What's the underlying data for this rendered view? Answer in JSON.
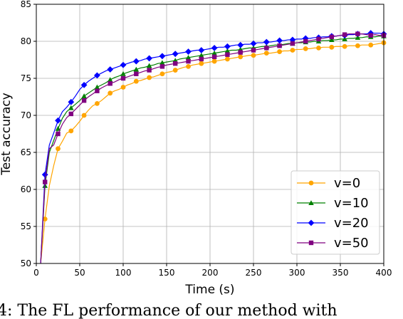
{
  "chart_data": {
    "type": "line",
    "xlabel": "Time (s)",
    "ylabel": "Test accuracy",
    "xlim": [
      0,
      400
    ],
    "ylim": [
      50,
      85
    ],
    "x_ticks": [
      0,
      50,
      100,
      150,
      200,
      250,
      300,
      350,
      400
    ],
    "y_ticks": [
      50,
      55,
      60,
      65,
      70,
      75,
      80,
      85
    ],
    "grid": true,
    "legend_position": "lower-right",
    "series": [
      {
        "name": "v=0",
        "color": "#ffa500",
        "marker": "circle",
        "x": [
          5,
          10,
          15,
          20,
          25,
          30,
          35,
          40,
          45,
          50,
          55,
          60,
          65,
          70,
          75,
          80,
          85,
          90,
          95,
          100,
          105,
          110,
          115,
          120,
          125,
          130,
          135,
          140,
          145,
          150,
          155,
          160,
          165,
          170,
          175,
          180,
          185,
          190,
          195,
          200,
          205,
          210,
          215,
          220,
          225,
          230,
          235,
          240,
          245,
          250,
          255,
          260,
          265,
          270,
          275,
          280,
          285,
          290,
          295,
          300,
          305,
          310,
          315,
          320,
          325,
          330,
          335,
          340,
          345,
          350,
          355,
          360,
          365,
          370,
          375,
          380,
          385,
          390,
          395,
          400
        ],
        "y": [
          50.0,
          56.0,
          60.5,
          63.2,
          65.5,
          66.5,
          67.6,
          67.9,
          68.5,
          69.2,
          70.0,
          70.7,
          71.3,
          71.6,
          72.0,
          72.5,
          73.0,
          73.3,
          73.5,
          73.8,
          74.1,
          74.3,
          74.6,
          74.7,
          74.9,
          75.1,
          75.2,
          75.4,
          75.6,
          75.8,
          75.9,
          76.1,
          76.3,
          76.5,
          76.6,
          76.8,
          76.9,
          77.0,
          77.1,
          77.2,
          77.3,
          77.4,
          77.5,
          77.6,
          77.7,
          77.8,
          77.9,
          78.0,
          78.1,
          78.1,
          78.2,
          78.3,
          78.4,
          78.4,
          78.5,
          78.6,
          78.7,
          78.7,
          78.8,
          78.9,
          78.9,
          79.0,
          79.0,
          79.1,
          79.1,
          79.2,
          79.2,
          79.2,
          79.3,
          79.3,
          79.3,
          79.4,
          79.4,
          79.4,
          79.5,
          79.5,
          79.5,
          79.6,
          79.7,
          79.8
        ]
      },
      {
        "name": "v=10",
        "color": "#008000",
        "marker": "triangle",
        "x": [
          5,
          10,
          15,
          20,
          25,
          30,
          35,
          40,
          45,
          50,
          55,
          60,
          65,
          70,
          75,
          80,
          85,
          90,
          95,
          100,
          105,
          110,
          115,
          120,
          125,
          130,
          135,
          140,
          145,
          150,
          155,
          160,
          165,
          170,
          175,
          180,
          185,
          190,
          195,
          200,
          205,
          210,
          215,
          220,
          225,
          230,
          235,
          240,
          245,
          250,
          255,
          260,
          265,
          270,
          275,
          280,
          285,
          290,
          295,
          300,
          305,
          310,
          315,
          320,
          325,
          330,
          335,
          340,
          345,
          350,
          355,
          360,
          365,
          370,
          375,
          380,
          385,
          390,
          395,
          400
        ],
        "y": [
          50.0,
          60.5,
          65.0,
          66.6,
          68.2,
          69.6,
          70.5,
          71.0,
          71.5,
          72.0,
          72.6,
          73.0,
          73.4,
          73.8,
          74.1,
          74.4,
          74.8,
          75.1,
          75.3,
          75.6,
          75.8,
          76.0,
          76.2,
          76.4,
          76.5,
          76.7,
          76.8,
          77.0,
          77.1,
          77.2,
          77.3,
          77.4,
          77.6,
          77.7,
          77.8,
          77.9,
          78.0,
          78.1,
          78.2,
          78.3,
          78.4,
          78.5,
          78.6,
          78.7,
          78.8,
          78.8,
          78.9,
          79.0,
          79.1,
          79.1,
          79.2,
          79.3,
          79.3,
          79.4,
          79.5,
          79.5,
          79.6,
          79.7,
          79.7,
          79.8,
          79.8,
          79.9,
          79.9,
          80.0,
          80.0,
          80.1,
          80.1,
          80.2,
          80.2,
          80.3,
          80.3,
          80.4,
          80.4,
          80.5,
          80.5,
          80.6,
          80.6,
          80.6,
          80.7,
          80.7
        ]
      },
      {
        "name": "v=20",
        "color": "#0000ff",
        "marker": "diamond",
        "x": [
          5,
          10,
          15,
          20,
          25,
          30,
          35,
          40,
          45,
          50,
          55,
          60,
          65,
          70,
          75,
          80,
          85,
          90,
          95,
          100,
          105,
          110,
          115,
          120,
          125,
          130,
          135,
          140,
          145,
          150,
          155,
          160,
          165,
          170,
          175,
          180,
          185,
          190,
          195,
          200,
          205,
          210,
          215,
          220,
          225,
          230,
          235,
          240,
          245,
          250,
          255,
          260,
          265,
          270,
          275,
          280,
          285,
          290,
          295,
          300,
          305,
          310,
          315,
          320,
          325,
          330,
          335,
          340,
          345,
          350,
          355,
          360,
          365,
          370,
          375,
          380,
          385,
          390,
          395,
          400
        ],
        "y": [
          50.0,
          62.0,
          66.0,
          67.6,
          69.3,
          70.5,
          71.1,
          71.8,
          72.6,
          73.5,
          74.1,
          74.6,
          75.0,
          75.4,
          75.7,
          76.0,
          76.2,
          76.4,
          76.6,
          76.8,
          77.0,
          77.2,
          77.3,
          77.4,
          77.6,
          77.7,
          77.8,
          77.9,
          78.0,
          78.1,
          78.2,
          78.3,
          78.4,
          78.5,
          78.6,
          78.7,
          78.8,
          78.8,
          78.9,
          79.0,
          79.1,
          79.2,
          79.2,
          79.3,
          79.4,
          79.5,
          79.5,
          79.6,
          79.6,
          79.7,
          79.8,
          79.8,
          79.9,
          79.9,
          80.0,
          80.1,
          80.1,
          80.2,
          80.2,
          80.3,
          80.3,
          80.4,
          80.4,
          80.5,
          80.5,
          80.6,
          80.6,
          80.7,
          80.7,
          80.8,
          80.8,
          80.9,
          80.9,
          81.0,
          81.0,
          81.0,
          81.1,
          81.1,
          81.1,
          81.0
        ]
      },
      {
        "name": "v=50",
        "color": "#800080",
        "marker": "square",
        "x": [
          5,
          10,
          15,
          20,
          25,
          30,
          35,
          40,
          45,
          50,
          55,
          60,
          65,
          70,
          75,
          80,
          85,
          90,
          95,
          100,
          105,
          110,
          115,
          120,
          125,
          130,
          135,
          140,
          145,
          150,
          155,
          160,
          165,
          170,
          175,
          180,
          185,
          190,
          195,
          200,
          205,
          210,
          215,
          220,
          225,
          230,
          235,
          240,
          245,
          250,
          255,
          260,
          265,
          270,
          275,
          280,
          285,
          290,
          295,
          300,
          305,
          310,
          315,
          320,
          325,
          330,
          335,
          340,
          345,
          350,
          355,
          360,
          365,
          370,
          375,
          380,
          385,
          390,
          395,
          400
        ],
        "y": [
          50.0,
          61.0,
          65.5,
          66.0,
          67.5,
          68.8,
          69.7,
          70.2,
          70.8,
          71.4,
          72.0,
          72.5,
          72.9,
          73.3,
          73.7,
          74.0,
          74.3,
          74.5,
          74.8,
          75.0,
          75.2,
          75.4,
          75.6,
          75.8,
          76.0,
          76.1,
          76.3,
          76.5,
          76.6,
          76.8,
          76.9,
          77.0,
          77.1,
          77.2,
          77.3,
          77.4,
          77.5,
          77.6,
          77.7,
          77.8,
          77.9,
          78.0,
          78.1,
          78.2,
          78.3,
          78.4,
          78.5,
          78.6,
          78.7,
          78.8,
          78.9,
          79.0,
          79.1,
          79.2,
          79.3,
          79.4,
          79.5,
          79.6,
          79.7,
          79.8,
          79.9,
          80.0,
          80.1,
          80.2,
          80.3,
          80.4,
          80.5,
          80.6,
          80.7,
          80.8,
          80.9,
          81.0,
          81.0,
          81.0,
          81.0,
          80.9,
          80.8,
          80.9,
          80.8,
          80.8
        ]
      }
    ]
  },
  "caption": "4:  The FL performance of our method with"
}
